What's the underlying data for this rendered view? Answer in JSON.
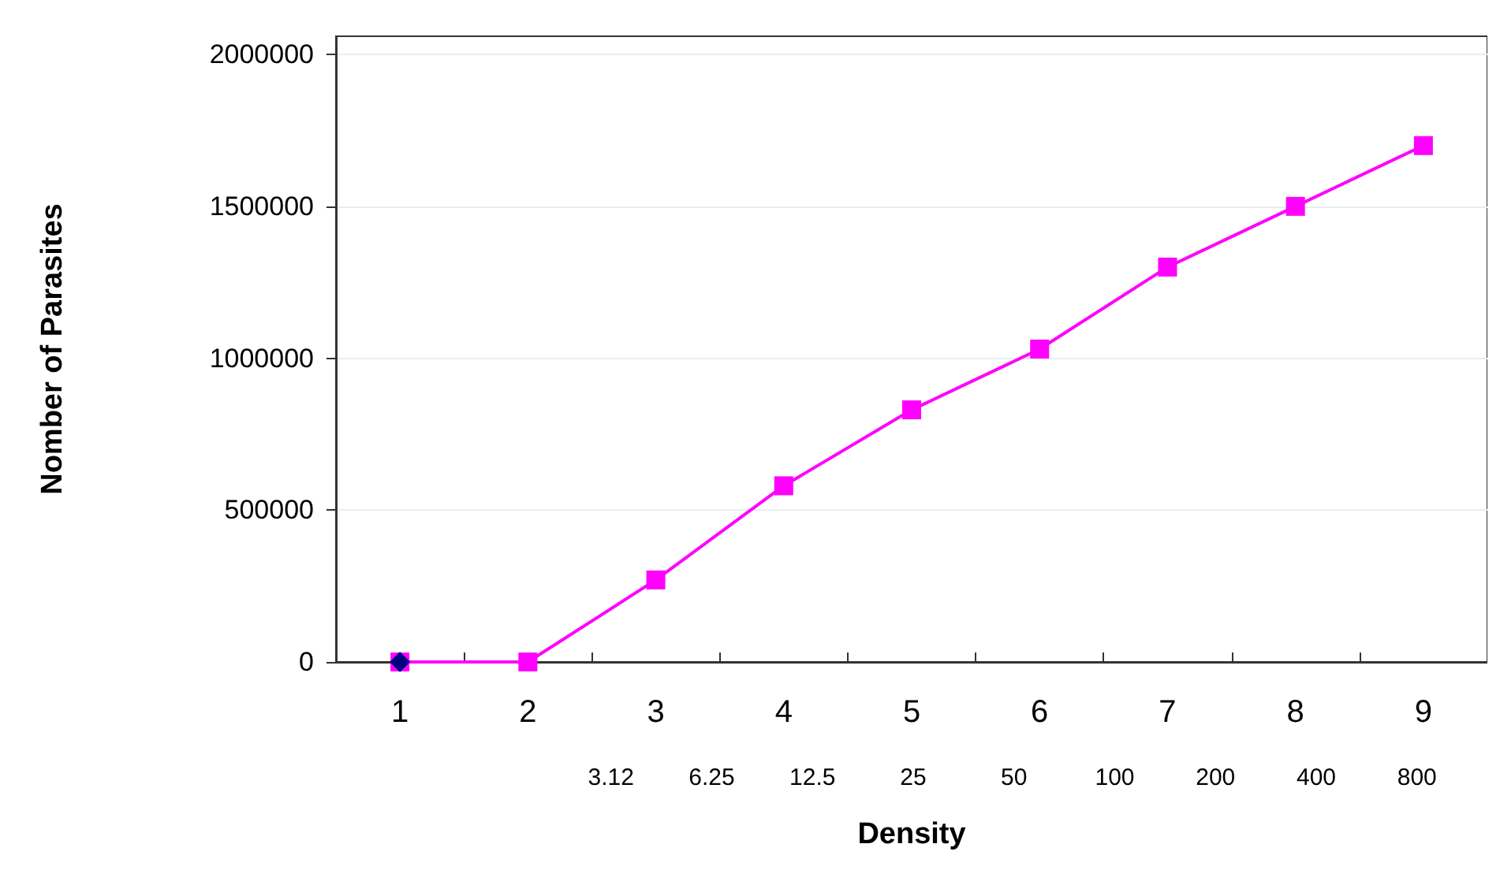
{
  "chart_data": {
    "type": "line",
    "xlabel": "Density",
    "ylabel": "Nomber of Parasites",
    "categories": [
      "1",
      "2",
      "3",
      "4",
      "5",
      "6",
      "7",
      "8",
      "9"
    ],
    "series": [
      {
        "color": "#ff00ff",
        "marker": "square",
        "values": [
          0,
          0,
          270000,
          580000,
          830000,
          1030000,
          1300000,
          1500000,
          1700000
        ]
      },
      {
        "color": "#000080",
        "marker": "diamond",
        "values": [
          0,
          null,
          null,
          null,
          null,
          null,
          null,
          null,
          null
        ]
      }
    ],
    "ylim": [
      0,
      2060000
    ],
    "yticks": [
      0,
      500000,
      1000000,
      1500000,
      2000000
    ],
    "grid": "y",
    "annotations": [
      "3.12",
      "6.25",
      "12.5",
      "25",
      "50",
      "100",
      "200",
      "400",
      "800"
    ]
  }
}
